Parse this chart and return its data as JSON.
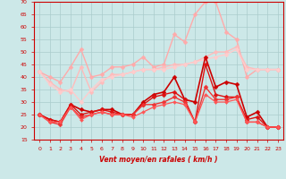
{
  "xlabel": "Vent moyen/en rafales ( km/h )",
  "bg_color": "#cce8e8",
  "grid_color": "#aacccc",
  "ylim": [
    15,
    70
  ],
  "yticks": [
    15,
    20,
    25,
    30,
    35,
    40,
    45,
    50,
    55,
    60,
    65,
    70
  ],
  "xlim": [
    -0.5,
    23.5
  ],
  "xticks": [
    0,
    1,
    2,
    3,
    4,
    5,
    6,
    7,
    8,
    9,
    10,
    11,
    12,
    13,
    14,
    15,
    16,
    17,
    18,
    19,
    20,
    21,
    22,
    23
  ],
  "series": [
    {
      "data": [
        42,
        40,
        38,
        44,
        51,
        40,
        41,
        44,
        44,
        45,
        48,
        44,
        45,
        57,
        54,
        65,
        70,
        70,
        58,
        55,
        40,
        43,
        43,
        43
      ],
      "color": "#ffaaaa",
      "lw": 1.0,
      "marker": "D",
      "ms": 2.5
    },
    {
      "data": [
        42,
        38,
        35,
        34,
        44,
        34,
        38,
        41,
        41,
        42,
        43,
        43,
        44,
        45,
        45,
        46,
        48,
        50,
        50,
        52,
        44,
        43,
        43,
        43
      ],
      "color": "#ffbbbb",
      "lw": 1.0,
      "marker": "D",
      "ms": 2.5
    },
    {
      "data": [
        42,
        37,
        34,
        35,
        30,
        35,
        39,
        40,
        41,
        42,
        43,
        43,
        43,
        44,
        45,
        46,
        47,
        48,
        49,
        51,
        43,
        43,
        43,
        43
      ],
      "color": "#ffcccc",
      "lw": 1.0,
      "marker": "D",
      "ms": 2.5
    },
    {
      "data": [
        25,
        23,
        22,
        29,
        27,
        26,
        27,
        27,
        25,
        25,
        30,
        33,
        34,
        40,
        31,
        30,
        48,
        36,
        38,
        37,
        24,
        26,
        20,
        20
      ],
      "color": "#cc0000",
      "lw": 1.2,
      "marker": "D",
      "ms": 2.5
    },
    {
      "data": [
        25,
        23,
        22,
        29,
        25,
        26,
        27,
        26,
        25,
        25,
        29,
        32,
        33,
        34,
        31,
        22,
        45,
        33,
        32,
        32,
        23,
        24,
        20,
        20
      ],
      "color": "#dd1111",
      "lw": 1.0,
      "marker": "D",
      "ms": 2.5
    },
    {
      "data": [
        25,
        22,
        21,
        28,
        24,
        25,
        26,
        25,
        25,
        25,
        29,
        29,
        30,
        32,
        30,
        22,
        36,
        31,
        31,
        32,
        22,
        22,
        20,
        20
      ],
      "color": "#ee3333",
      "lw": 1.0,
      "marker": "D",
      "ms": 2.5
    },
    {
      "data": [
        25,
        22,
        22,
        28,
        23,
        25,
        26,
        25,
        25,
        24,
        26,
        28,
        29,
        30,
        29,
        22,
        33,
        30,
        30,
        31,
        22,
        22,
        20,
        20
      ],
      "color": "#ff5555",
      "lw": 0.9,
      "marker": "D",
      "ms": 2.0
    }
  ]
}
